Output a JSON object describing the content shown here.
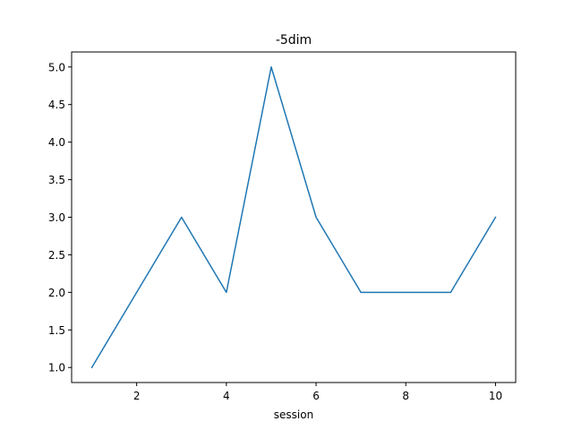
{
  "chart_data": {
    "type": "line",
    "title": "-5dim",
    "xlabel": "session",
    "ylabel": "",
    "xlim": [
      0.55,
      10.45
    ],
    "ylim": [
      0.8,
      5.2
    ],
    "xticks": [
      2,
      4,
      6,
      8,
      10
    ],
    "xtick_labels": [
      "2",
      "4",
      "6",
      "8",
      "10"
    ],
    "yticks": [
      1.0,
      1.5,
      2.0,
      2.5,
      3.0,
      3.5,
      4.0,
      4.5,
      5.0
    ],
    "ytick_labels": [
      "1.0",
      "1.5",
      "2.0",
      "2.5",
      "3.0",
      "3.5",
      "4.0",
      "4.5",
      "5.0"
    ],
    "grid": false,
    "series": [
      {
        "color": "#1f77b4",
        "x": [
          1,
          2,
          3,
          4,
          5,
          6,
          7,
          8,
          9,
          10
        ],
        "y": [
          1,
          2,
          3,
          2,
          5,
          3,
          2,
          2,
          2,
          3
        ]
      }
    ]
  }
}
